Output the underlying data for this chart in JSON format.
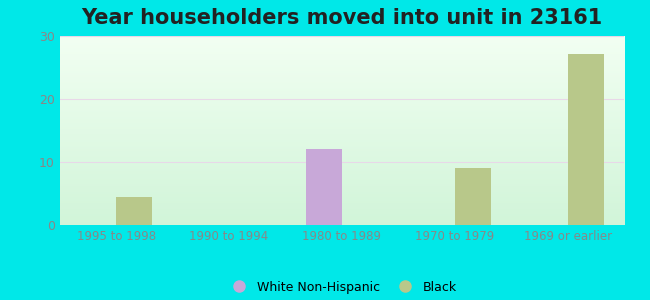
{
  "title": "Year householders moved into unit in 23161",
  "categories": [
    "1995 to 1998",
    "1990 to 1994",
    "1980 to 1989",
    "1970 to 1979",
    "1969 or earlier"
  ],
  "white_values": [
    0,
    0,
    12,
    0,
    0
  ],
  "black_values": [
    4.5,
    0,
    0,
    9,
    27
  ],
  "white_color": "#c8a8d8",
  "black_color": "#b8c88a",
  "ylim": [
    0,
    30
  ],
  "yticks": [
    0,
    10,
    20,
    30
  ],
  "background_outer": "#00e8e8",
  "title_fontsize": 15,
  "bar_width": 0.32,
  "legend_white": "White Non-Hispanic",
  "legend_black": "Black",
  "tick_color": "#888888",
  "grid_color": "#ddeecc"
}
